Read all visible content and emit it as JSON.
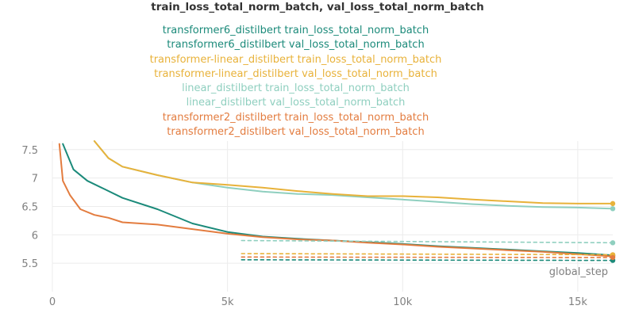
{
  "chart_data": {
    "type": "line",
    "title": "train_loss_total_norm_batch, val_loss_total_norm_batch",
    "xlabel": "global_step",
    "ylabel": "",
    "xlim": [
      0,
      16000
    ],
    "ylim": [
      5.0,
      7.65
    ],
    "x_ticks": [
      0,
      5000,
      10000,
      15000
    ],
    "x_tick_labels": [
      "0",
      "5k",
      "10k",
      "15k"
    ],
    "y_ticks": [
      5.5,
      6,
      6.5,
      7,
      7.5
    ],
    "y_tick_labels": [
      "5.5",
      "6",
      "6.5",
      "7",
      "7.5"
    ],
    "grid": true,
    "legend_position": "top",
    "series": [
      {
        "name": "transformer6_distilbert train_loss_total_norm_batch",
        "color": "#1b8a7a",
        "style": "solid",
        "x": [
          300,
          600,
          1000,
          1500,
          2000,
          3000,
          4000,
          5000,
          6000,
          7000,
          8000,
          9000,
          10000,
          11000,
          12000,
          13000,
          14000,
          15000,
          16000
        ],
        "y": [
          7.6,
          7.15,
          6.95,
          6.8,
          6.65,
          6.45,
          6.2,
          6.05,
          5.97,
          5.93,
          5.9,
          5.87,
          5.84,
          5.8,
          5.77,
          5.74,
          5.71,
          5.68,
          5.64
        ]
      },
      {
        "name": "transformer6_distilbert val_loss_total_norm_batch",
        "color": "#1b8a7a",
        "style": "dashed",
        "x": [
          5400,
          16000
        ],
        "y": [
          5.56,
          5.55
        ]
      },
      {
        "name": "transformer-linear_distilbert train_loss_total_norm_batch",
        "color": "#e8b23a",
        "style": "solid",
        "x": [
          1200,
          1600,
          2000,
          3000,
          4000,
          5000,
          6000,
          7000,
          8000,
          9000,
          10000,
          11000,
          12000,
          13000,
          14000,
          15000,
          16000
        ],
        "y": [
          7.65,
          7.35,
          7.2,
          7.05,
          6.92,
          6.88,
          6.83,
          6.77,
          6.72,
          6.68,
          6.68,
          6.66,
          6.62,
          6.59,
          6.56,
          6.55,
          6.55
        ]
      },
      {
        "name": "transformer-linear_distilbert val_loss_total_norm_batch",
        "color": "#e8b23a",
        "style": "dashed",
        "x": [
          5400,
          16000
        ],
        "y": [
          5.67,
          5.65
        ]
      },
      {
        "name": "linear_distilbert train_loss_total_norm_batch",
        "color": "#8fcfbf",
        "style": "solid",
        "x": [
          1200,
          1600,
          2000,
          3000,
          4000,
          5000,
          6000,
          7000,
          8000,
          9000,
          10000,
          11000,
          12000,
          13000,
          14000,
          15000,
          16000
        ],
        "y": [
          7.65,
          7.35,
          7.2,
          7.05,
          6.92,
          6.83,
          6.76,
          6.72,
          6.7,
          6.66,
          6.62,
          6.58,
          6.54,
          6.51,
          6.49,
          6.48,
          6.46
        ]
      },
      {
        "name": "linear_distilbert val_loss_total_norm_batch",
        "color": "#8fcfbf",
        "style": "dashed",
        "x": [
          5400,
          16000
        ],
        "y": [
          5.9,
          5.86
        ]
      },
      {
        "name": "transformer2_distilbert train_loss_total_norm_batch",
        "color": "#e37c3f",
        "style": "solid",
        "x": [
          200,
          300,
          500,
          800,
          1200,
          1600,
          2000,
          3000,
          4000,
          5000,
          6000,
          7000,
          8000,
          9000,
          10000,
          11000,
          12000,
          13000,
          14000,
          15000,
          16000
        ],
        "y": [
          7.6,
          6.95,
          6.7,
          6.45,
          6.35,
          6.3,
          6.22,
          6.18,
          6.1,
          6.02,
          5.96,
          5.92,
          5.9,
          5.86,
          5.83,
          5.79,
          5.76,
          5.73,
          5.7,
          5.66,
          5.62
        ]
      },
      {
        "name": "transformer2_distilbert val_loss_total_norm_batch",
        "color": "#e37c3f",
        "style": "dashed",
        "x": [
          5400,
          16000
        ],
        "y": [
          5.61,
          5.6
        ]
      }
    ]
  }
}
